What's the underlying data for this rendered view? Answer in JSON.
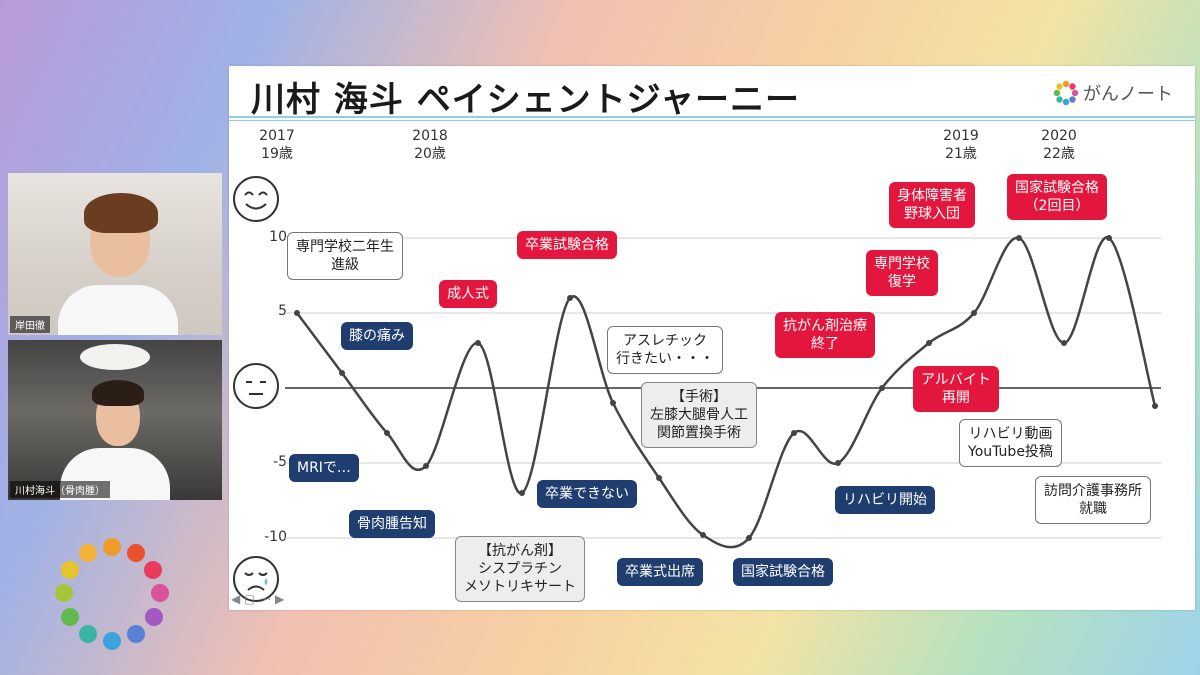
{
  "participants": [
    {
      "name": "岸田徹"
    },
    {
      "name": "川村海斗（骨肉腫）"
    }
  ],
  "slide": {
    "title": "川村 海斗 ペイシェントジャーニー",
    "brand": "がんノート",
    "years": [
      {
        "year": "2017",
        "age": "19歳"
      },
      {
        "year": "2018",
        "age": "20歳"
      },
      {
        "year": "2019",
        "age": "21歳"
      },
      {
        "year": "2020",
        "age": "22歳"
      }
    ],
    "y_ticks": [
      "10",
      "5",
      "-5",
      "-10"
    ],
    "events": {
      "e1": "専門学校二年生\n進級",
      "e2": "膝の痛み",
      "e3": "MRIで…",
      "e4": "骨肉腫告知",
      "e5": "成人式",
      "e6": "【抗がん剤】\nシスプラチン\nメソトリキサート",
      "e7": "卒業試験合格",
      "e8": "卒業できない",
      "e9": "アスレチック\n行きたい・・・",
      "e10": "【手術】\n左膝大腿骨人工\n関節置換手術",
      "e11": "卒業式出席",
      "e12": "国家試験合格",
      "e13": "リハビリ開始",
      "e14": "抗がん剤治療\n終了",
      "e15": "専門学校\n復学",
      "e16": "アルバイト\n再開",
      "e17": "身体障害者\n野球入団",
      "e18": "国家試験合格\n（2回目）",
      "e19": "リハビリ動画\nYouTube投稿",
      "e20": "訪問介護事務所\n就職"
    },
    "colors": {
      "navy": "#1f3d6e",
      "red": "#e3173e",
      "curve": "#444444",
      "rule": "#8fd0e6"
    }
  },
  "chart_data": {
    "type": "line",
    "title": "川村 海斗 ペイシェントジャーニー",
    "xlabel": "",
    "ylabel": "",
    "x_ticks": [
      "2017 19歳",
      "2018 20歳",
      "2019 21歳",
      "2020 22歳"
    ],
    "ylim": [
      -11,
      11
    ],
    "y_ticks": [
      10,
      5,
      0,
      -5,
      -10
    ],
    "series": [
      {
        "values": [
          5,
          1,
          -3,
          -5.2,
          3,
          -7,
          6,
          -1,
          -6,
          -9.8,
          -10,
          -3,
          -5,
          0,
          3,
          5,
          10,
          3,
          10,
          -1.2
        ]
      }
    ],
    "grid": true
  }
}
